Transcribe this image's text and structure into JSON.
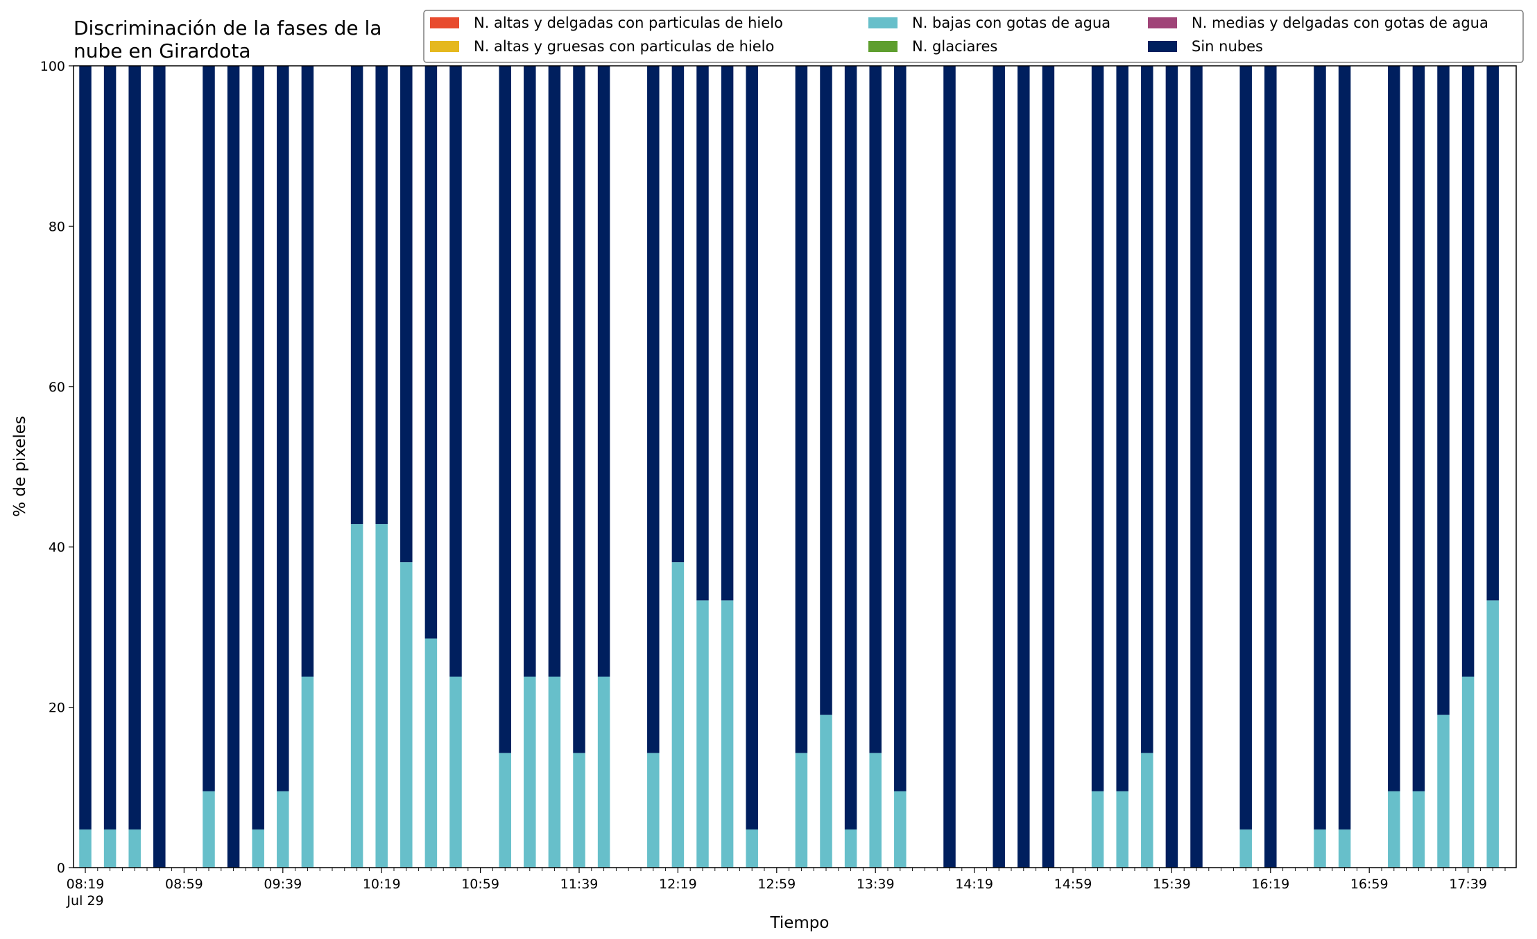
{
  "chart_data": {
    "type": "bar",
    "stacked": true,
    "title_lines": [
      "Discriminación de la fases de la",
      "nube en Girardota"
    ],
    "xlabel": "Tiempo",
    "ylabel": "% de pixeles",
    "ylim": [
      0,
      100
    ],
    "yticks": [
      0,
      20,
      40,
      60,
      80,
      100
    ],
    "x_start": "08:19",
    "x_step_minutes": 10,
    "x_end": "17:49",
    "xtick_labels": [
      "08:19",
      "08:59",
      "09:39",
      "10:19",
      "10:59",
      "11:39",
      "12:19",
      "12:59",
      "13:39",
      "14:19",
      "14:59",
      "15:39",
      "16:19",
      "16:59",
      "17:39"
    ],
    "xtick_date": "Jul 29",
    "legend_position": "upper-right",
    "grid": false,
    "series": [
      {
        "name": "N. altas y delgadas con particulas de hielo",
        "color": "#e84b2e",
        "values": []
      },
      {
        "name": "N. altas y gruesas con particulas de hielo",
        "color": "#e5b81e",
        "values": []
      },
      {
        "name": "N. bajas con gotas de agua",
        "color": "#67bfca",
        "values": [
          4.76,
          4.76,
          4.76,
          0,
          null,
          9.52,
          0,
          4.76,
          9.52,
          23.81,
          null,
          42.86,
          42.86,
          38.1,
          28.57,
          23.81,
          null,
          14.29,
          23.81,
          23.81,
          14.29,
          23.81,
          null,
          14.29,
          38.1,
          33.33,
          33.33,
          4.76,
          null,
          14.29,
          19.05,
          4.76,
          14.29,
          9.52,
          null,
          0,
          null,
          0,
          0,
          0,
          null,
          9.52,
          9.52,
          14.29,
          0,
          0,
          null,
          4.76,
          0,
          null,
          4.76,
          4.76,
          null,
          9.52,
          9.52,
          19.05,
          23.81,
          33.33
        ]
      },
      {
        "name": "N. glaciares",
        "color": "#5e9e2e",
        "values": []
      },
      {
        "name": "N. medias y delgadas con gotas de agua",
        "color": "#a04478",
        "values": []
      },
      {
        "name": "Sin nubes",
        "color": "#001f5e",
        "values": [
          95.24,
          95.24,
          95.24,
          100,
          null,
          90.48,
          100,
          95.24,
          90.48,
          76.19,
          null,
          57.14,
          57.14,
          61.9,
          71.43,
          76.19,
          null,
          85.71,
          76.19,
          76.19,
          85.71,
          76.19,
          null,
          85.71,
          61.9,
          66.67,
          66.67,
          95.24,
          null,
          85.71,
          80.95,
          95.24,
          85.71,
          90.48,
          null,
          100,
          null,
          100,
          100,
          100,
          null,
          90.48,
          90.48,
          85.71,
          100,
          100,
          null,
          95.24,
          100,
          null,
          95.24,
          95.24,
          null,
          90.48,
          90.48,
          80.95,
          76.19,
          66.67
        ]
      }
    ]
  }
}
